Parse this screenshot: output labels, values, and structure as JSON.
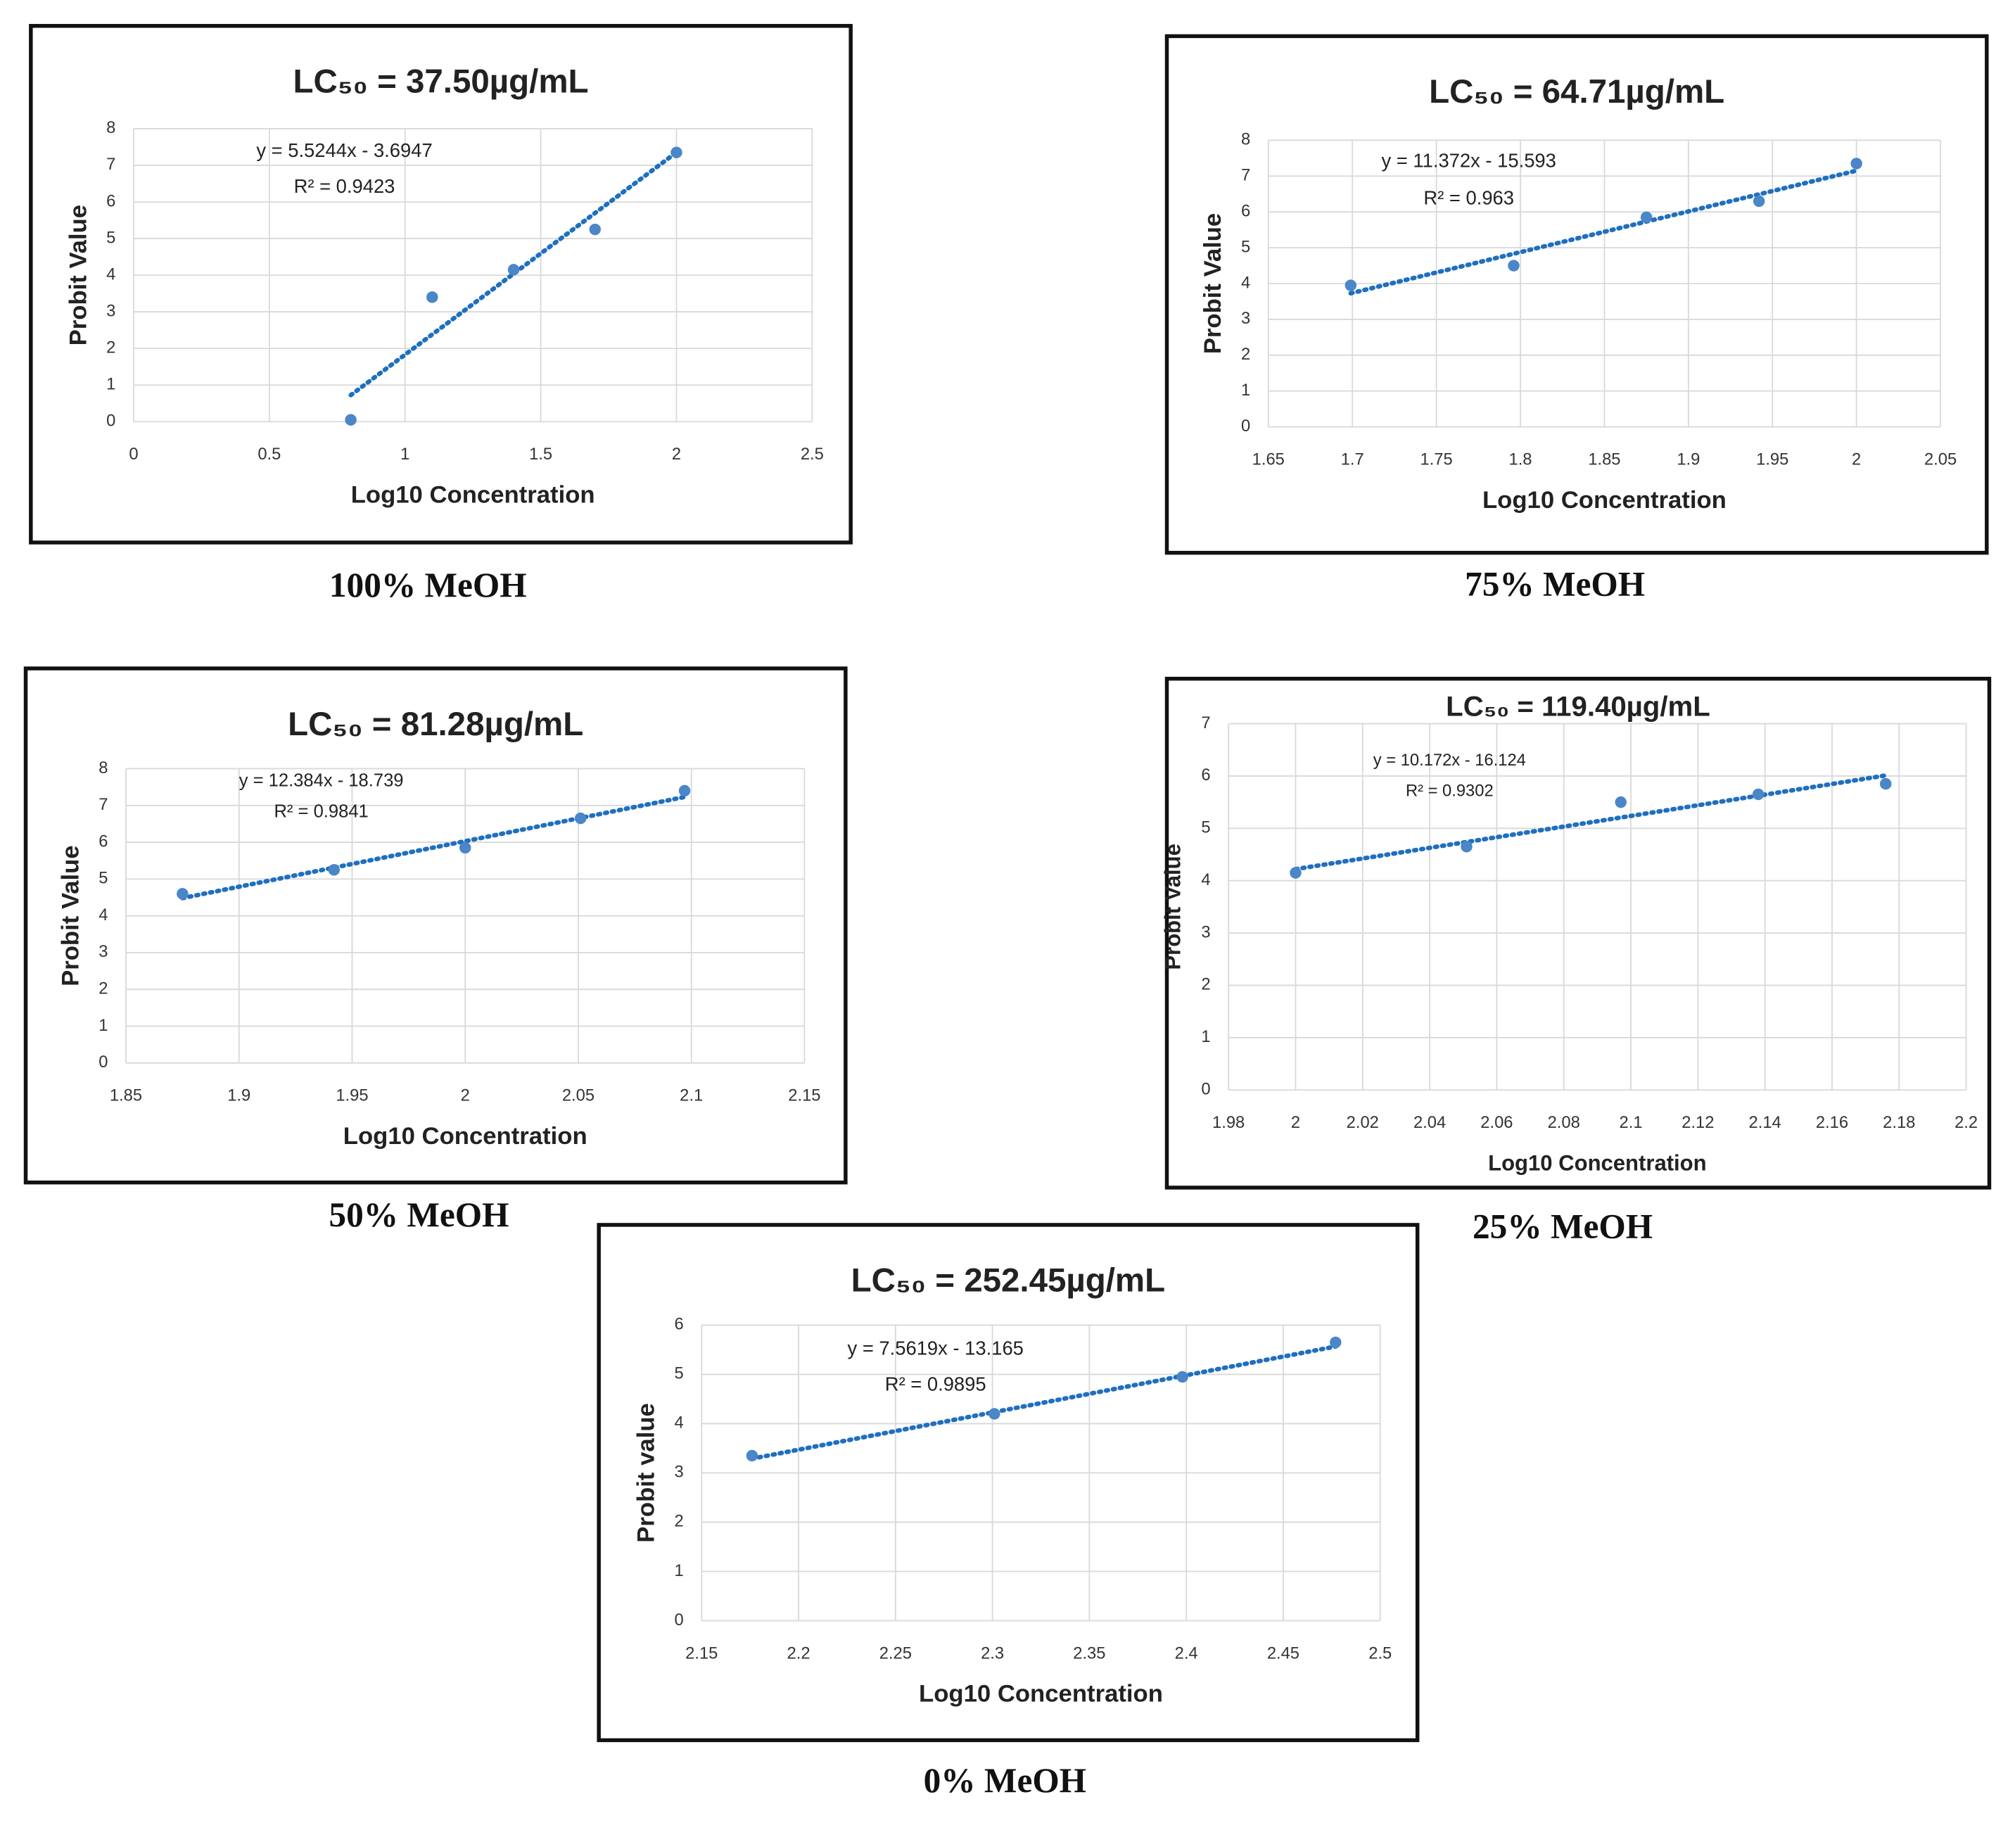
{
  "chart_data": [
    {
      "type": "scatter",
      "title": "LC₅₀ = 37.50µg/mL",
      "caption": "100% MeOH",
      "x_label": "Log10 Concentration",
      "y_label": "Probit Value",
      "color": "#4a86c8",
      "x": [
        0.8,
        1.1,
        1.4,
        1.7,
        2.0
      ],
      "values": [
        0.05,
        3.4,
        4.15,
        5.25,
        7.35
      ],
      "xlim": [
        0,
        2.5
      ],
      "xticks": [
        0,
        0.5,
        1,
        1.5,
        2,
        2.5
      ],
      "ylim": [
        0,
        8
      ],
      "yticks": [
        0,
        1,
        2,
        3,
        4,
        5,
        6,
        7,
        8
      ],
      "grid": true,
      "trendline": {
        "slope": 5.5244,
        "intercept": -3.6947,
        "label": "y = 5.5244x - 3.6947",
        "color": "#1f6fbf"
      },
      "r2_label": "R² = 0.9423"
    },
    {
      "type": "scatter",
      "title": "LC₅₀ = 64.71µg/mL",
      "caption": "75% MeOH",
      "x_label": "Log10 Concentration",
      "y_label": "Probit Value",
      "color": "#4a86c8",
      "x": [
        1.699,
        1.796,
        1.875,
        1.942,
        2.0
      ],
      "values": [
        3.95,
        4.5,
        5.85,
        6.3,
        7.35
      ],
      "xlim": [
        1.65,
        2.05
      ],
      "xticks": [
        1.65,
        1.7,
        1.75,
        1.8,
        1.85,
        1.9,
        1.95,
        2,
        2.05
      ],
      "ylim": [
        0,
        8
      ],
      "yticks": [
        0,
        1,
        2,
        3,
        4,
        5,
        6,
        7,
        8
      ],
      "grid": true,
      "trendline": {
        "slope": 11.372,
        "intercept": -15.593,
        "label": "y = 11.372x - 15.593",
        "color": "#1f6fbf"
      },
      "r2_label": "R² = 0.963"
    },
    {
      "type": "scatter",
      "title": "LC₅₀ = 81.28µg/mL",
      "caption": "50% MeOH",
      "x_label": "Log10 Concentration",
      "y_label": "Probit Value",
      "color": "#4a86c8",
      "x": [
        1.875,
        1.942,
        2.0,
        2.051,
        2.097
      ],
      "values": [
        4.6,
        5.25,
        5.85,
        6.65,
        7.4
      ],
      "xlim": [
        1.85,
        2.15
      ],
      "xticks": [
        1.85,
        1.9,
        1.95,
        2,
        2.05,
        2.1,
        2.15
      ],
      "ylim": [
        0,
        8
      ],
      "yticks": [
        0,
        1,
        2,
        3,
        4,
        5,
        6,
        7,
        8
      ],
      "grid": true,
      "trendline": {
        "slope": 12.384,
        "intercept": -18.739,
        "label": "y = 12.384x - 18.739",
        "color": "#1f6fbf"
      },
      "r2_label": "R² = 0.9841"
    },
    {
      "type": "scatter",
      "title": "LC₅₀ = 119.40µg/mL",
      "caption": "25% MeOH",
      "x_label": "Log10 Concentration",
      "y_label": "Probit Value",
      "color": "#4a86c8",
      "x": [
        2.0,
        2.051,
        2.097,
        2.138,
        2.176
      ],
      "values": [
        4.15,
        4.65,
        5.5,
        5.65,
        5.85
      ],
      "xlim": [
        1.98,
        2.2
      ],
      "xticks": [
        1.98,
        2,
        2.02,
        2.04,
        2.06,
        2.08,
        2.1,
        2.12,
        2.14,
        2.16,
        2.18,
        2.2
      ],
      "ylim": [
        0,
        7
      ],
      "yticks": [
        0,
        1,
        2,
        3,
        4,
        5,
        6,
        7
      ],
      "grid": true,
      "trendline": {
        "slope": 10.172,
        "intercept": -16.124,
        "label": "y = 10.172x - 16.124",
        "color": "#1f6fbf"
      },
      "r2_label": "R² = 0.9302"
    },
    {
      "type": "scatter",
      "title": "LC₅₀ = 252.45µg/mL",
      "caption": "0% MeOH",
      "x_label": "Log10 Concentration",
      "y_label": "Probit value",
      "color": "#4a86c8",
      "x": [
        2.176,
        2.301,
        2.398,
        2.477
      ],
      "values": [
        3.35,
        4.2,
        4.95,
        5.65
      ],
      "xlim": [
        2.15,
        2.5
      ],
      "xticks": [
        2.15,
        2.2,
        2.25,
        2.3,
        2.35,
        2.4,
        2.45,
        2.5
      ],
      "ylim": [
        0,
        6
      ],
      "yticks": [
        0,
        1,
        2,
        3,
        4,
        5,
        6
      ],
      "grid": true,
      "trendline": {
        "slope": 7.5619,
        "intercept": -13.165,
        "label": "y = 7.5619x - 13.165",
        "color": "#1f6fbf"
      },
      "r2_label": "R² = 0.9895"
    }
  ]
}
